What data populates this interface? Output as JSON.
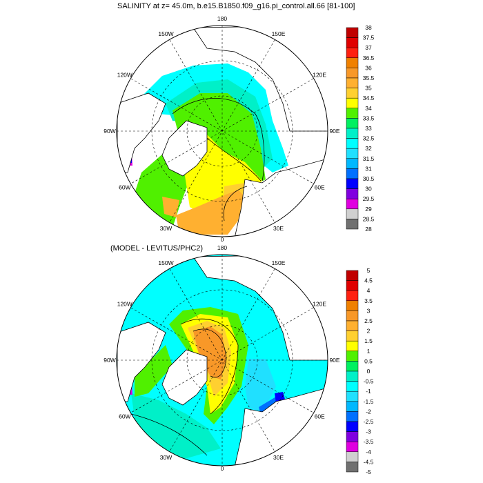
{
  "panels": [
    {
      "title": "SALINITY at z=  45.0m, b.e15.B1850.f09_g16.pi_control.all.66 [81-100]",
      "longitude_labels": [
        "180",
        "150E",
        "120E",
        "90E",
        "60E",
        "30E",
        "0",
        "30W",
        "60W",
        "90W",
        "120W",
        "150W"
      ],
      "colorbar_labels": [
        "38",
        "37.5",
        "37",
        "36.5",
        "36",
        "35.5",
        "35",
        "34.5",
        "34",
        "33.5",
        "33",
        "32.5",
        "32",
        "31.5",
        "31",
        "30.5",
        "30",
        "29.5",
        "29",
        "28.5",
        "28"
      ]
    },
    {
      "title": "(MODEL - LEVITUS/PHC2)",
      "longitude_labels": [
        "180",
        "150E",
        "120E",
        "90E",
        "60E",
        "30E",
        "0",
        "30W",
        "60W",
        "90W",
        "120W",
        "150W"
      ],
      "colorbar_labels": [
        "5",
        "4.5",
        "4",
        "3.5",
        "3",
        "2.5",
        "2",
        "1.5",
        "1",
        "0.5",
        "0",
        "-0.5",
        "-1",
        "-1.5",
        "-2",
        "-2.5",
        "-3",
        "-3.5",
        "-4",
        "-4.5",
        "-5"
      ]
    }
  ],
  "colorbar_colors": [
    "#c00000",
    "#e00000",
    "#ff2010",
    "#f08000",
    "#f89828",
    "#ffb030",
    "#ffd030",
    "#ffff00",
    "#50f000",
    "#00f060",
    "#00f0c8",
    "#00ffff",
    "#20e0ff",
    "#00b8ff",
    "#0070ff",
    "#0000ff",
    "#8000e0",
    "#e000e0",
    "#d0d0d0",
    "#707070"
  ]
}
